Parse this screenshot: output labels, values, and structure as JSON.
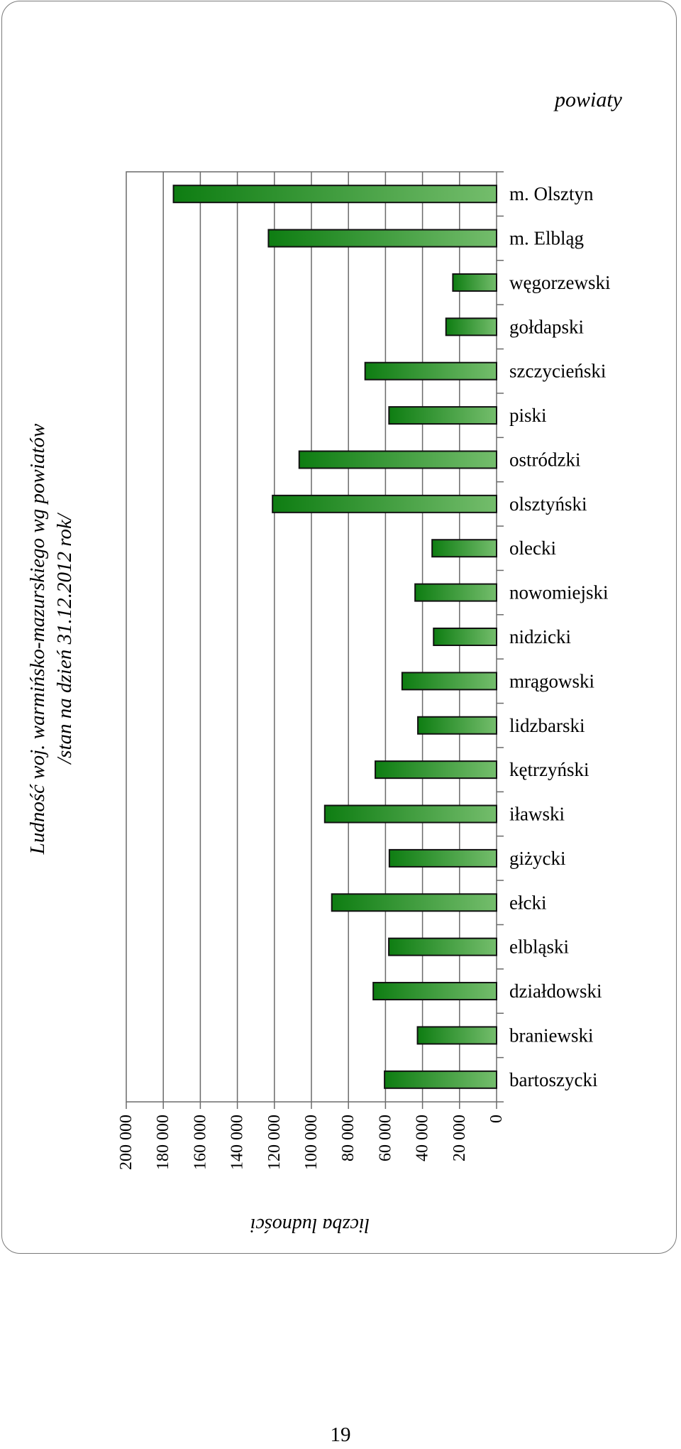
{
  "page": {
    "number": "19"
  },
  "chart_data": {
    "type": "bar",
    "orientation": "horizontal",
    "title": "Ludność woj. warmińsko-mazurskiego wg powiatów",
    "subtitle": "/stan na dzień 31.12.2012 rok/",
    "legend_title": "powiaty",
    "xlabel": "liczba ludności",
    "ylabel": "",
    "xlim": [
      0,
      200000
    ],
    "x_ticks": [
      "0",
      "20 000",
      "40 000",
      "60 000",
      "80 000",
      "100 000",
      "120 000",
      "140 000",
      "160 000",
      "180 000",
      "200 000"
    ],
    "grid": true,
    "rotated": "90deg counter-clockwise",
    "categories": [
      "m. Olsztyn",
      "m. Elbląg",
      "węgorzewski",
      "gołdapski",
      "szczycieński",
      "piski",
      "ostródzki",
      "olsztyński",
      "olecki",
      "nowomiejski",
      "nidzicki",
      "mrągowski",
      "lidzbarski",
      "kętrzyński",
      "iławski",
      "giżycki",
      "ełcki",
      "elbląski",
      "działdowski",
      "braniewski",
      "bartoszycki"
    ],
    "values": [
      174500,
      123200,
      23600,
      27300,
      71000,
      58100,
      106600,
      121000,
      34800,
      44000,
      34000,
      51000,
      42500,
      65500,
      92800,
      57900,
      89000,
      58200,
      66600,
      42700,
      60500
    ],
    "colors": {
      "bar_dark": "#0e7d12",
      "bar_light": "#74bd6c",
      "bar_edge": "#111111",
      "grid": "#6a6a6a"
    }
  }
}
